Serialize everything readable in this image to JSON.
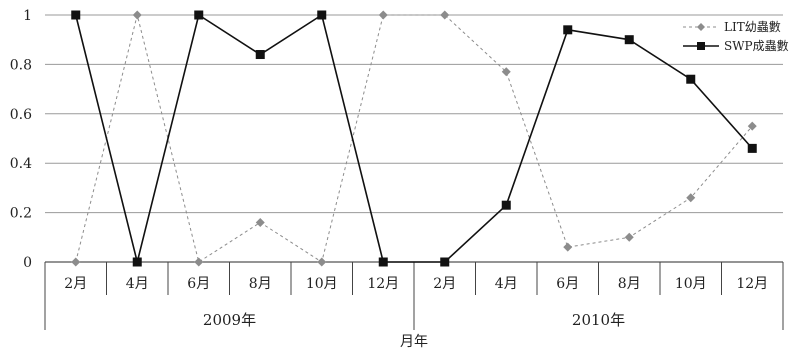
{
  "chart_data": {
    "type": "line",
    "title": "",
    "xlabel": "月年",
    "ylabel": "",
    "ylim": [
      0,
      1
    ],
    "yticks": [
      "0",
      "0.2",
      "0.4",
      "0.6",
      "0.8",
      "1"
    ],
    "categories": [
      "2月",
      "4月",
      "6月",
      "8月",
      "10月",
      "12月",
      "2月",
      "4月",
      "6月",
      "8月",
      "10月",
      "12月"
    ],
    "groups": [
      {
        "label": "2009年",
        "span": [
          0,
          5
        ]
      },
      {
        "label": "2010年",
        "span": [
          6,
          11
        ]
      }
    ],
    "series": [
      {
        "name": "LIT幼蟲數",
        "style": "dashed",
        "marker": "diamond",
        "color": "#8c8c8c",
        "values": [
          0,
          1,
          0,
          0.16,
          0,
          1,
          1,
          0.77,
          0.06,
          0.1,
          0.26,
          0.55
        ]
      },
      {
        "name": "SWP成蟲數",
        "style": "solid",
        "marker": "square",
        "color": "#111111",
        "values": [
          1,
          0,
          1,
          0.84,
          1,
          0,
          0,
          0.23,
          0.94,
          0.9,
          0.74,
          0.46
        ]
      }
    ],
    "grid": true,
    "legend_position": "top-right"
  }
}
